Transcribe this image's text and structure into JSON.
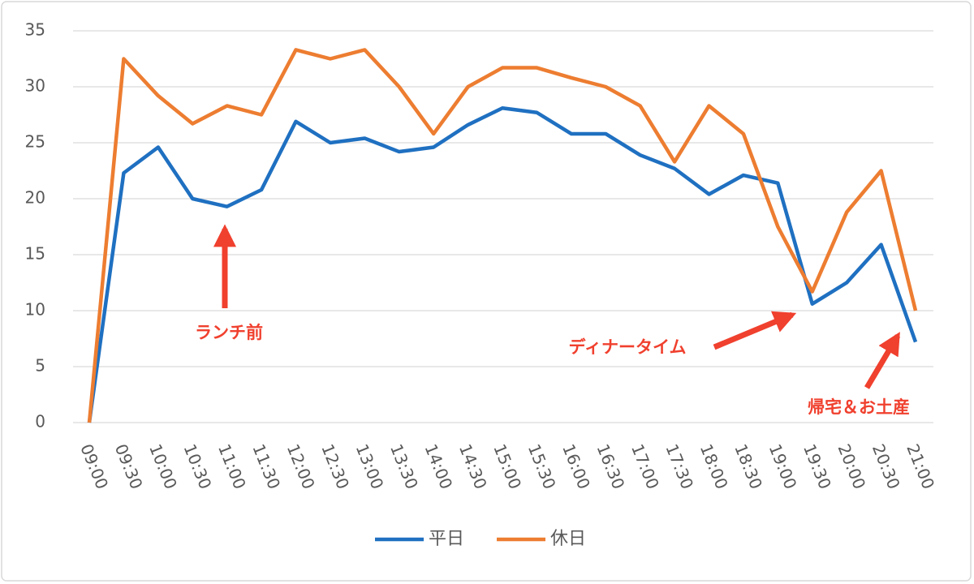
{
  "chart_data": {
    "type": "line",
    "categories": [
      "09:00",
      "09:30",
      "10:00",
      "10:30",
      "11:00",
      "11:30",
      "12:00",
      "12:30",
      "13:00",
      "13:30",
      "14:00",
      "14:30",
      "15:00",
      "15:30",
      "16:00",
      "16:30",
      "17:00",
      "17:30",
      "18:00",
      "18:30",
      "19:00",
      "19:30",
      "20:00",
      "20:30",
      "21:00"
    ],
    "series": [
      {
        "name": "平日",
        "color": "#1f70c1",
        "values": [
          0,
          22.3,
          24.6,
          20.0,
          19.3,
          20.8,
          26.9,
          25.0,
          25.4,
          24.2,
          24.6,
          26.6,
          28.1,
          27.7,
          25.8,
          25.8,
          23.9,
          22.7,
          20.4,
          22.1,
          21.4,
          10.6,
          12.5,
          15.9,
          7.2
        ]
      },
      {
        "name": "休日",
        "color": "#ed7d31",
        "values": [
          0,
          32.5,
          29.2,
          26.7,
          28.3,
          27.5,
          33.3,
          32.5,
          33.3,
          30.0,
          25.8,
          30.0,
          31.7,
          31.7,
          30.8,
          30.0,
          28.3,
          23.3,
          28.3,
          25.8,
          17.5,
          11.7,
          18.8,
          22.5,
          10.0
        ]
      }
    ],
    "ylim": [
      0,
      35
    ],
    "yticks": [
      0,
      5,
      10,
      15,
      20,
      25,
      30,
      35
    ],
    "grid": true,
    "legend": "bottom",
    "annotations": [
      "ランチ前",
      "ディナータイム",
      "帰宅＆お土産"
    ],
    "annotation_color": "#f0402e"
  }
}
